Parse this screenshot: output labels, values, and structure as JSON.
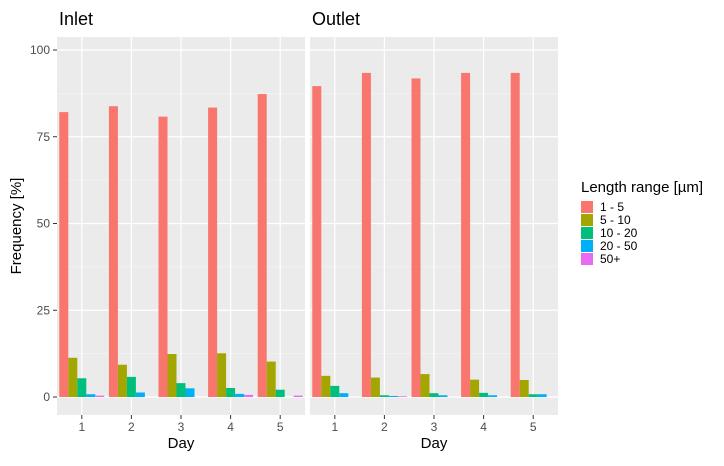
{
  "chart_data": {
    "type": "bar",
    "ylabel": "Frequency [%]",
    "xlabel": "Day",
    "ylim": [
      0,
      100
    ],
    "yticks": [
      0,
      25,
      50,
      75,
      100
    ],
    "categories": [
      "1",
      "2",
      "3",
      "4",
      "5"
    ],
    "grid": true,
    "legend": {
      "title": "Length range [µm]",
      "placement": "right",
      "entries": [
        {
          "label": "1 - 5",
          "color": "#F8766D"
        },
        {
          "label": "5 - 10",
          "color": "#A3A500"
        },
        {
          "label": "10 - 20",
          "color": "#00BF7D"
        },
        {
          "label": "20 - 50",
          "color": "#00B0F6"
        },
        {
          "label": "50+",
          "color": "#E76BF3"
        }
      ]
    },
    "panels": [
      {
        "title": "Inlet",
        "series": [
          {
            "name": "1 - 5",
            "values": [
              82.1,
              83.8,
              80.8,
              83.4,
              87.3
            ]
          },
          {
            "name": "5 - 10",
            "values": [
              11.3,
              9.3,
              12.4,
              12.6,
              10.2
            ]
          },
          {
            "name": "10 - 20",
            "values": [
              5.4,
              5.8,
              4.0,
              2.6,
              2.1
            ]
          },
          {
            "name": "20 - 50",
            "values": [
              0.8,
              1.3,
              2.5,
              0.9,
              0.0
            ]
          },
          {
            "name": "50+",
            "values": [
              0.4,
              0.0,
              0.0,
              0.6,
              0.4
            ]
          }
        ]
      },
      {
        "title": "Outlet",
        "series": [
          {
            "name": "1 - 5",
            "values": [
              89.6,
              93.4,
              91.8,
              93.4,
              93.4
            ]
          },
          {
            "name": "5 - 10",
            "values": [
              6.1,
              5.6,
              6.6,
              5.0,
              4.9
            ]
          },
          {
            "name": "10 - 20",
            "values": [
              3.2,
              0.5,
              1.1,
              1.2,
              0.8
            ]
          },
          {
            "name": "20 - 50",
            "values": [
              1.1,
              0.3,
              0.5,
              0.5,
              0.8
            ]
          },
          {
            "name": "50+",
            "values": [
              0.0,
              0.2,
              0.0,
              0.0,
              0.0
            ]
          }
        ]
      }
    ]
  }
}
